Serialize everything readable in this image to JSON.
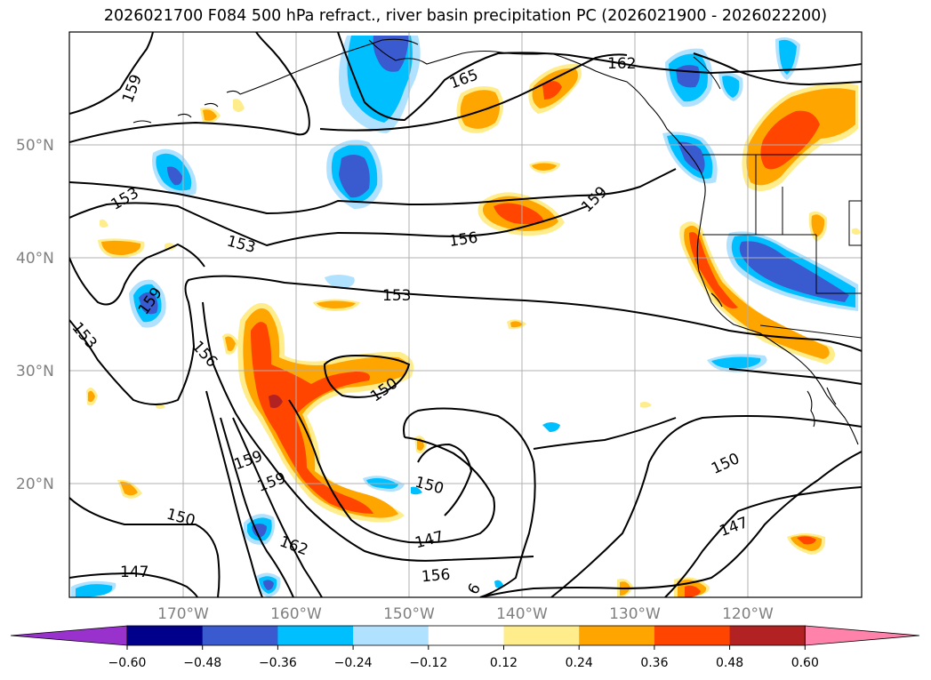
{
  "title": "2026021700 F084 500 hPa refract., river basin precipitation PC (2026021900 - 2026022200)",
  "lat_labels": [
    "50°N",
    "40°N",
    "30°N",
    "20°N"
  ],
  "lon_labels": [
    "170°W",
    "160°W",
    "150°W",
    "140°W",
    "130°W",
    "120°W"
  ],
  "contour_labels": [
    "159",
    "165",
    "162",
    "153",
    "153",
    "156",
    "159",
    "159",
    "153",
    "153",
    "156",
    "150",
    "159",
    "159",
    "150",
    "150",
    "147",
    "162",
    "147",
    "156",
    "150",
    "147",
    "6"
  ],
  "colorbar": {
    "ticks": [
      "−0.60",
      "−0.48",
      "−0.36",
      "−0.24",
      "−0.12",
      "0.12",
      "0.24",
      "0.36",
      "0.48",
      "0.60"
    ],
    "colors": [
      "#9932cc",
      "#00008b",
      "#3a5bd0",
      "#00bfff",
      "#b0e2ff",
      "#ffffff",
      "#ffec8b",
      "#ffa500",
      "#ff4500",
      "#b22222",
      "#ff82ab"
    ]
  },
  "colors": {
    "neg_light": "#b0e2ff",
    "neg_mid": "#00bfff",
    "neg_strong": "#3a5bd0",
    "pos_light": "#ffec8b",
    "pos_mid": "#ffa500",
    "pos_strong": "#ff4500",
    "pos_max": "#b22222",
    "grid": "#b0b0b0"
  }
}
